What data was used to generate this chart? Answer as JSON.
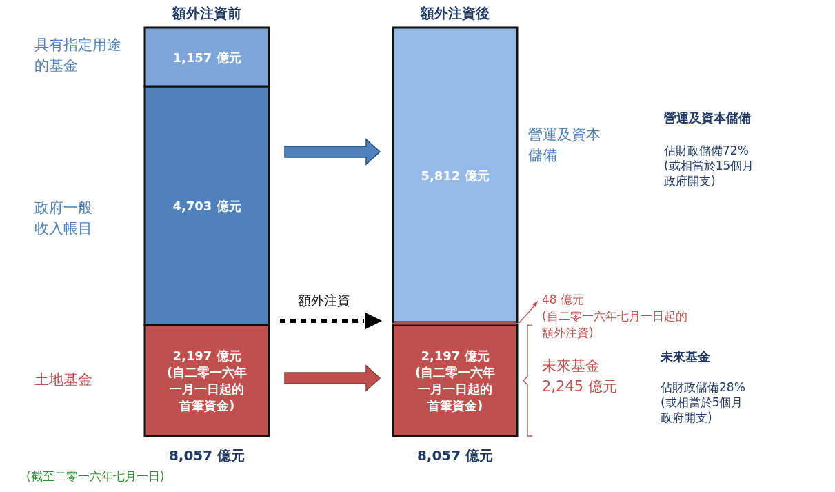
{
  "chart_data": {
    "type": "bar",
    "stacked": true,
    "categories": [
      "額外注資前",
      "額外注資後"
    ],
    "series": [
      {
        "colors": [
          "#c0504d",
          "#c0504d"
        ],
        "values": [
          2197,
          2197
        ],
        "value_labels": [
          "2,197 億元 (自二零一六年一月一日起的首筆資金)",
          "2,197 億元 (自二零一六年一月一日起的首筆資金)"
        ]
      },
      {
        "color": "#c0504d",
        "values": [
          null,
          48
        ]
      },
      {
        "colors": [
          "#4f81bd",
          "#95b9e8"
        ],
        "values": [
          4703,
          5812
        ],
        "value_labels": [
          "4,703 億元",
          "5,812 億元"
        ]
      },
      {
        "color": "#7ea6da",
        "values": [
          1157,
          null
        ],
        "value_labels": [
          "1,157 億元",
          null
        ]
      }
    ],
    "totals": [
      "8,057 億元",
      "8,057 億元"
    ],
    "annotations": [
      "具有指定用途的基金",
      "政府一般收入帳目",
      "土地基金",
      "營運及資本儲備",
      "48 億元 (自二零一六年七月一日起的額外注資)",
      "未來基金 2,245 億元",
      "額外注資",
      "營運及資本儲備",
      "佔財政儲備72% (或相當於15個月政府開支)",
      "未來基金",
      "佔財政儲備28% (或相當於5個月政府開支)",
      "(截至二零一六年七月一日)"
    ]
  }
}
